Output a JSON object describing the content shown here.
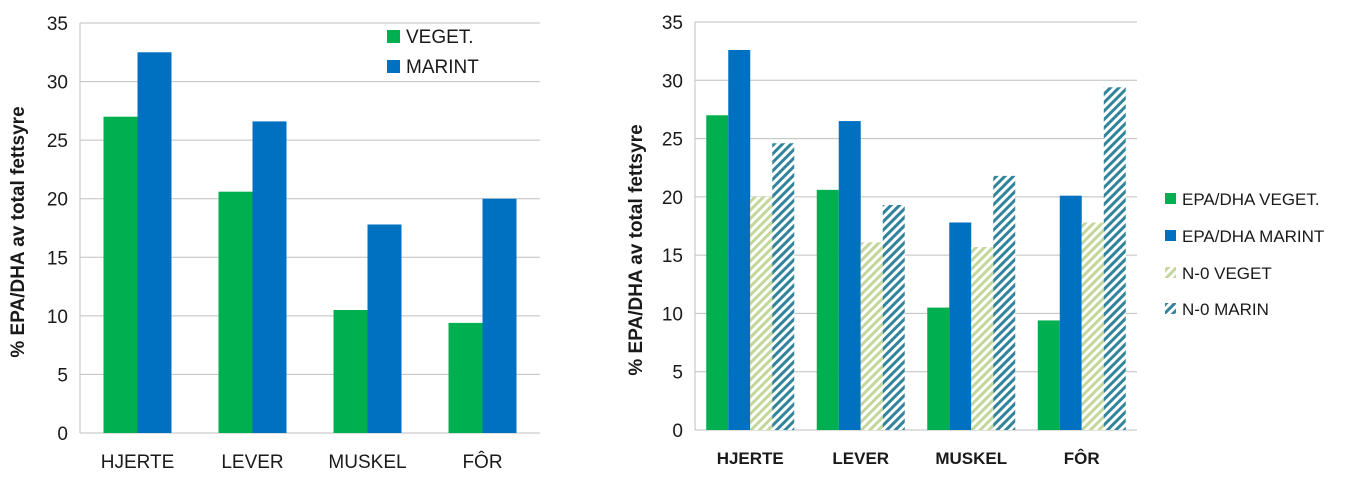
{
  "colors": {
    "veget": "#00b050",
    "marint": "#0070c0",
    "n0_veget": "#c4d79b",
    "n0_marin": "#31849b",
    "grid": "#bfbfbf"
  },
  "chart_data": [
    {
      "type": "bar",
      "categories": [
        "HJERTE",
        "LEVER",
        "MUSKEL",
        "FÔR"
      ],
      "series": [
        {
          "name": "VEGET.",
          "values": [
            27.0,
            20.6,
            10.5,
            9.4
          ]
        },
        {
          "name": "MARINT",
          "values": [
            32.5,
            26.6,
            17.8,
            20.0
          ]
        }
      ],
      "ylabel": "% EPA/DHA  av total fettsyre",
      "ylim": [
        0,
        35
      ],
      "yticks": [
        "0",
        "5",
        "10",
        "15",
        "20",
        "25",
        "30",
        "35"
      ],
      "grid": true,
      "legend_position": "top-right"
    },
    {
      "type": "bar",
      "categories": [
        "HJERTE",
        "LEVER",
        "MUSKEL",
        "FÔR"
      ],
      "series": [
        {
          "name": "EPA/DHA VEGET.",
          "values": [
            27.0,
            20.6,
            10.5,
            9.4
          ]
        },
        {
          "name": "EPA/DHA MARINT",
          "values": [
            32.6,
            26.5,
            17.8,
            20.1
          ]
        },
        {
          "name": "N-0 VEGET",
          "values": [
            20.0,
            16.1,
            15.7,
            17.8
          ]
        },
        {
          "name": "N-0 MARIN",
          "values": [
            24.6,
            19.3,
            21.8,
            29.4
          ]
        }
      ],
      "ylabel": "% EPA/DHA  av total fettsyre",
      "ylim": [
        0,
        35
      ],
      "yticks": [
        "0",
        "5",
        "10",
        "15",
        "20",
        "25",
        "30",
        "35"
      ],
      "grid": true,
      "legend_position": "right"
    }
  ]
}
